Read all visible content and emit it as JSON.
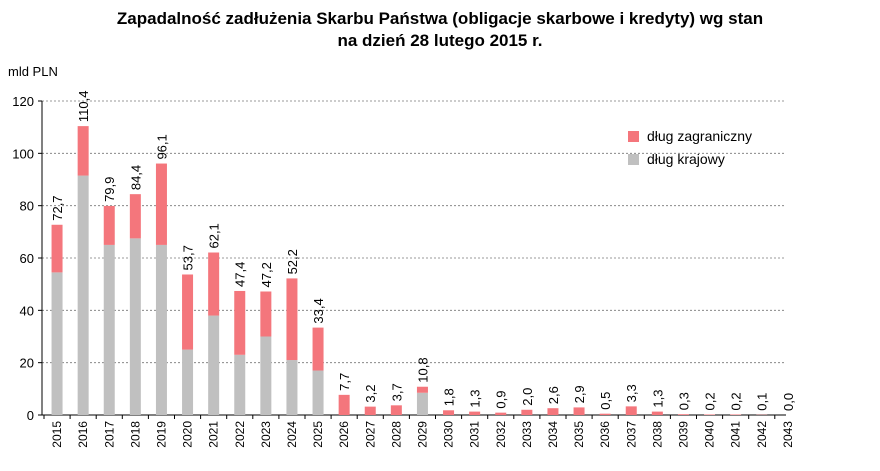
{
  "chart_data": {
    "type": "bar",
    "stacked": true,
    "title": "Zapadalność zadłużenia Skarbu Państwa (obligacje skarbowe i kredyty) wg stan",
    "subtitle": "na dzień 28 lutego 2015 r.",
    "ylabel": "mld PLN",
    "xlabel": "",
    "ylim": [
      0,
      120
    ],
    "yticks": [
      0,
      20,
      40,
      60,
      80,
      100,
      120
    ],
    "grid": true,
    "legend_position": "top-right",
    "categories": [
      "2015",
      "2016",
      "2017",
      "2018",
      "2019",
      "2020",
      "2021",
      "2022",
      "2023",
      "2024",
      "2025",
      "2026",
      "2027",
      "2028",
      "2029",
      "2030",
      "2031",
      "2032",
      "2033",
      "2034",
      "2035",
      "2036",
      "2037",
      "2038",
      "2039",
      "2040",
      "2041",
      "2042",
      "2043"
    ],
    "series": [
      {
        "name": "dług krajowy",
        "color": "#c0c0c0",
        "values": [
          54.5,
          91.5,
          65.0,
          67.5,
          65.0,
          25.0,
          38.0,
          23.0,
          30.0,
          21.0,
          17.0,
          0,
          0,
          0,
          8.5,
          0,
          0,
          0,
          0,
          0,
          0,
          0,
          0,
          0,
          0,
          0,
          0,
          0,
          0
        ]
      },
      {
        "name": "dług zagraniczny",
        "color": "#f4767c",
        "values": [
          18.2,
          18.9,
          14.9,
          16.9,
          31.1,
          28.7,
          24.1,
          24.4,
          17.2,
          31.2,
          16.4,
          7.7,
          3.2,
          3.7,
          2.3,
          1.8,
          1.3,
          0.9,
          2.0,
          2.6,
          2.9,
          0.5,
          3.3,
          1.3,
          0.3,
          0.2,
          0.2,
          0.1,
          0.0
        ]
      }
    ],
    "totals": [
      "72,7",
      "110,4",
      "79,9",
      "84,4",
      "96,1",
      "53,7",
      "62,1",
      "47,4",
      "47,2",
      "52,2",
      "33,4",
      "7,7",
      "3,2",
      "3,7",
      "10,8",
      "1,8",
      "1,3",
      "0,9",
      "2,0",
      "2,6",
      "2,9",
      "0,5",
      "3,3",
      "1,3",
      "0,3",
      "0,2",
      "0,2",
      "0,1",
      "0,0"
    ]
  }
}
